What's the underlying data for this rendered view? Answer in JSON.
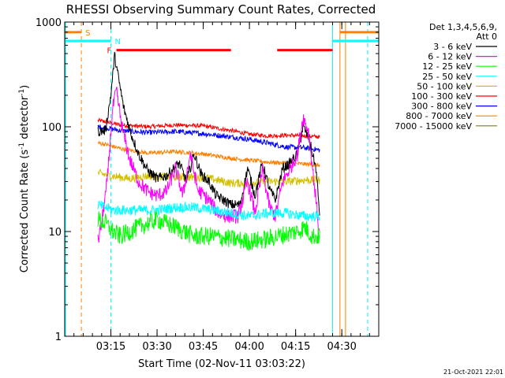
{
  "chart_data": {
    "type": "line",
    "title": "RHESSI Observing Summary Count Rates, Corrected",
    "xlabel": "Start Time (02-Nov-11 03:03:22)",
    "ylabel_main": "Corrected Count Rate (s",
    "ylabel_sup1": "-1",
    "ylabel_mid": " detector",
    "ylabel_sup2": "-1",
    "ylabel_end": ")",
    "yscale": "log",
    "xlim": [
      3.0,
      4.7
    ],
    "ylim": [
      1,
      1000
    ],
    "x_ticks": [
      {
        "value": 3.25,
        "label": "03:15"
      },
      {
        "value": 3.5,
        "label": "03:30"
      },
      {
        "value": 3.75,
        "label": "03:45"
      },
      {
        "value": 4.0,
        "label": "04:00"
      },
      {
        "value": 4.25,
        "label": "04:15"
      },
      {
        "value": 4.5,
        "label": "04:30"
      }
    ],
    "y_ticks": [
      {
        "value": 1,
        "label": "1"
      },
      {
        "value": 10,
        "label": "10"
      },
      {
        "value": 100,
        "label": "100"
      },
      {
        "value": 1000,
        "label": "1000"
      }
    ],
    "legend": {
      "header1": "Det 1,3,4,5,6,9,",
      "header2": "Att 0",
      "entries": [
        {
          "label": "3 - 6 keV",
          "color": "#000000"
        },
        {
          "label": "6 - 12 keV",
          "color": "#ff00ff"
        },
        {
          "label": "12 - 25 keV",
          "color": "#00ff00"
        },
        {
          "label": "25 - 50 keV",
          "color": "#00ffff"
        },
        {
          "label": "50 - 100 keV",
          "color": "#d4c000"
        },
        {
          "label": "100 - 300 keV",
          "color": "#ff0000"
        },
        {
          "label": "300 - 800 keV",
          "color": "#0000ff"
        },
        {
          "label": "800 - 7000 keV",
          "color": "#ff8000"
        },
        {
          "label": "7000 - 15000 keV",
          "color": "#808000"
        }
      ]
    },
    "series": [
      {
        "name": "100 - 300 keV",
        "color": "#ff0000",
        "noise": 0.02,
        "points": [
          [
            3.18,
            115
          ],
          [
            3.22,
            112
          ],
          [
            3.3,
            104
          ],
          [
            3.45,
            100
          ],
          [
            3.6,
            104
          ],
          [
            3.75,
            102
          ],
          [
            3.9,
            92
          ],
          [
            4.0,
            85
          ],
          [
            4.1,
            82
          ],
          [
            4.2,
            83
          ],
          [
            4.3,
            82
          ],
          [
            4.38,
            80
          ]
        ]
      },
      {
        "name": "300 - 800 keV",
        "color": "#0000ff",
        "noise": 0.025,
        "points": [
          [
            3.18,
            100
          ],
          [
            3.22,
            98
          ],
          [
            3.3,
            92
          ],
          [
            3.45,
            88
          ],
          [
            3.6,
            90
          ],
          [
            3.75,
            86
          ],
          [
            3.9,
            80
          ],
          [
            4.0,
            76
          ],
          [
            4.1,
            70
          ],
          [
            4.2,
            64
          ],
          [
            4.3,
            63
          ],
          [
            4.38,
            60
          ]
        ]
      },
      {
        "name": "800 - 7000 keV",
        "color": "#ff8000",
        "noise": 0.02,
        "points": [
          [
            3.18,
            70
          ],
          [
            3.22,
            68
          ],
          [
            3.3,
            62
          ],
          [
            3.45,
            56
          ],
          [
            3.6,
            58
          ],
          [
            3.75,
            55
          ],
          [
            3.9,
            50
          ],
          [
            4.0,
            48
          ],
          [
            4.1,
            46
          ],
          [
            4.2,
            45
          ],
          [
            4.3,
            44
          ],
          [
            4.38,
            43
          ]
        ]
      },
      {
        "name": "50 - 100 keV",
        "color": "#d4c000",
        "noise": 0.04,
        "points": [
          [
            3.18,
            36
          ],
          [
            3.25,
            34
          ],
          [
            3.35,
            32
          ],
          [
            3.45,
            34
          ],
          [
            3.6,
            33
          ],
          [
            3.75,
            33
          ],
          [
            3.9,
            29
          ],
          [
            4.0,
            29
          ],
          [
            4.1,
            30
          ],
          [
            4.2,
            30
          ],
          [
            4.3,
            31
          ],
          [
            4.38,
            31
          ]
        ]
      },
      {
        "name": "3 - 6 keV",
        "color": "#000000",
        "noise": 0.05,
        "points": [
          [
            3.18,
            90
          ],
          [
            3.22,
            92
          ],
          [
            3.25,
            200
          ],
          [
            3.27,
            480
          ],
          [
            3.29,
            300
          ],
          [
            3.32,
            150
          ],
          [
            3.36,
            85
          ],
          [
            3.4,
            55
          ],
          [
            3.45,
            38
          ],
          [
            3.5,
            32
          ],
          [
            3.55,
            34
          ],
          [
            3.62,
            45
          ],
          [
            3.66,
            30
          ],
          [
            3.7,
            55
          ],
          [
            3.74,
            35
          ],
          [
            3.78,
            30
          ],
          [
            3.82,
            22
          ],
          [
            3.86,
            20
          ],
          [
            3.9,
            18
          ],
          [
            3.95,
            18
          ],
          [
            3.99,
            40
          ],
          [
            4.03,
            22
          ],
          [
            4.07,
            45
          ],
          [
            4.11,
            25
          ],
          [
            4.14,
            20
          ],
          [
            4.18,
            40
          ],
          [
            4.22,
            45
          ],
          [
            4.26,
            55
          ],
          [
            4.29,
            100
          ],
          [
            4.32,
            80
          ],
          [
            4.36,
            40
          ],
          [
            4.38,
            15
          ]
        ]
      },
      {
        "name": "6 - 12 keV",
        "color": "#ff00ff",
        "noise": 0.07,
        "points": [
          [
            3.18,
            8
          ],
          [
            3.2,
            12
          ],
          [
            3.23,
            30
          ],
          [
            3.26,
            150
          ],
          [
            3.28,
            220
          ],
          [
            3.31,
            100
          ],
          [
            3.35,
            50
          ],
          [
            3.4,
            30
          ],
          [
            3.45,
            24
          ],
          [
            3.5,
            22
          ],
          [
            3.55,
            24
          ],
          [
            3.6,
            40
          ],
          [
            3.64,
            22
          ],
          [
            3.68,
            55
          ],
          [
            3.72,
            25
          ],
          [
            3.78,
            20
          ],
          [
            3.83,
            15
          ],
          [
            3.88,
            14
          ],
          [
            3.94,
            14
          ],
          [
            3.99,
            30
          ],
          [
            4.03,
            15
          ],
          [
            4.07,
            38
          ],
          [
            4.11,
            17
          ],
          [
            4.14,
            14
          ],
          [
            4.18,
            30
          ],
          [
            4.22,
            40
          ],
          [
            4.26,
            55
          ],
          [
            4.29,
            125
          ],
          [
            4.32,
            90
          ],
          [
            4.36,
            20
          ],
          [
            4.38,
            9
          ]
        ]
      },
      {
        "name": "25 - 50 keV",
        "color": "#00ffff",
        "noise": 0.05,
        "points": [
          [
            3.18,
            18
          ],
          [
            3.22,
            17
          ],
          [
            3.26,
            16
          ],
          [
            3.3,
            16
          ],
          [
            3.4,
            16
          ],
          [
            3.5,
            16
          ],
          [
            3.6,
            17
          ],
          [
            3.7,
            17
          ],
          [
            3.8,
            16
          ],
          [
            3.9,
            15
          ],
          [
            4.0,
            14
          ],
          [
            4.1,
            15
          ],
          [
            4.2,
            15
          ],
          [
            4.3,
            14
          ],
          [
            4.38,
            14
          ]
        ]
      },
      {
        "name": "12 - 25 keV",
        "color": "#00ff00",
        "noise": 0.09,
        "points": [
          [
            3.18,
            13
          ],
          [
            3.22,
            12
          ],
          [
            3.26,
            10
          ],
          [
            3.3,
            9
          ],
          [
            3.4,
            11
          ],
          [
            3.5,
            13
          ],
          [
            3.6,
            11
          ],
          [
            3.7,
            9
          ],
          [
            3.8,
            9
          ],
          [
            3.9,
            8.5
          ],
          [
            4.0,
            8
          ],
          [
            4.1,
            8.5
          ],
          [
            4.2,
            9.5
          ],
          [
            4.26,
            10
          ],
          [
            4.3,
            11
          ],
          [
            4.34,
            9
          ],
          [
            4.38,
            9
          ]
        ]
      }
    ],
    "vlines": [
      {
        "x": 3.09,
        "color": "#ff8000",
        "style": "dashed"
      },
      {
        "x": 3.25,
        "color": "#00ffff",
        "style": "dashed"
      },
      {
        "x": 4.45,
        "color": "#00ffff",
        "style": "solid"
      },
      {
        "x": 4.49,
        "color": "#ff8000",
        "style": "solid"
      },
      {
        "x": 4.52,
        "color": "#ff8000",
        "style": "solid"
      },
      {
        "x": 4.64,
        "color": "#ff8000",
        "style": "dashed"
      },
      {
        "x": 4.64,
        "color": "#00ffff",
        "style": "dashed"
      }
    ],
    "flags": [
      {
        "label": "S",
        "color": "#ff8000",
        "y": 800,
        "segments": [
          [
            3.0,
            3.09
          ],
          [
            4.49,
            4.7
          ]
        ]
      },
      {
        "label": "N",
        "color": "#00ffff",
        "y": 660,
        "segments": [
          [
            3.0,
            3.25
          ],
          [
            4.45,
            4.7
          ]
        ]
      },
      {
        "label": "F",
        "color": "#ff0000",
        "y": 540,
        "segments": [
          [
            3.28,
            3.9
          ],
          [
            4.15,
            4.45
          ]
        ]
      }
    ]
  },
  "timestamp": "21-Oct-2021 22:01"
}
